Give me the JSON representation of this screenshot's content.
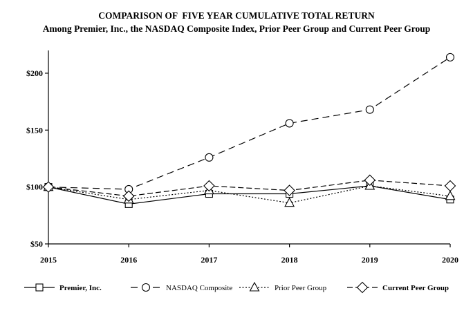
{
  "chart_data": {
    "type": "line",
    "title": "COMPARISON OF  FIVE YEAR CUMULATIVE TOTAL RETURN",
    "subtitle": "Among Premier, Inc., the NASDAQ Composite Index, Prior Peer Group and Current Peer Group",
    "xlabel": "",
    "ylabel": "",
    "categories": [
      "2015",
      "2016",
      "2017",
      "2018",
      "2019",
      "2020"
    ],
    "ylim": [
      50,
      220
    ],
    "yticks": [
      50,
      100,
      150,
      200
    ],
    "ytick_labels": [
      "$50",
      "$100",
      "$150",
      "$200"
    ],
    "grid": false,
    "legend_position": "bottom",
    "series": [
      {
        "name": "Premier, Inc.",
        "marker": "square",
        "dash": "solid",
        "bold_label": true,
        "values": [
          100,
          85,
          94,
          94,
          101,
          89
        ]
      },
      {
        "name": "NASDAQ Composite",
        "marker": "circle",
        "dash": "dashed",
        "bold_label": false,
        "values": [
          100,
          98,
          126,
          156,
          168,
          214
        ]
      },
      {
        "name": "Prior Peer Group",
        "marker": "triangle",
        "dash": "dotted",
        "bold_label": false,
        "values": [
          100,
          89,
          97,
          86,
          101,
          92
        ]
      },
      {
        "name": "Current Peer Group",
        "marker": "diamond",
        "dash": "dashdot",
        "bold_label": true,
        "values": [
          100,
          92,
          101,
          97,
          106,
          101
        ]
      }
    ]
  }
}
